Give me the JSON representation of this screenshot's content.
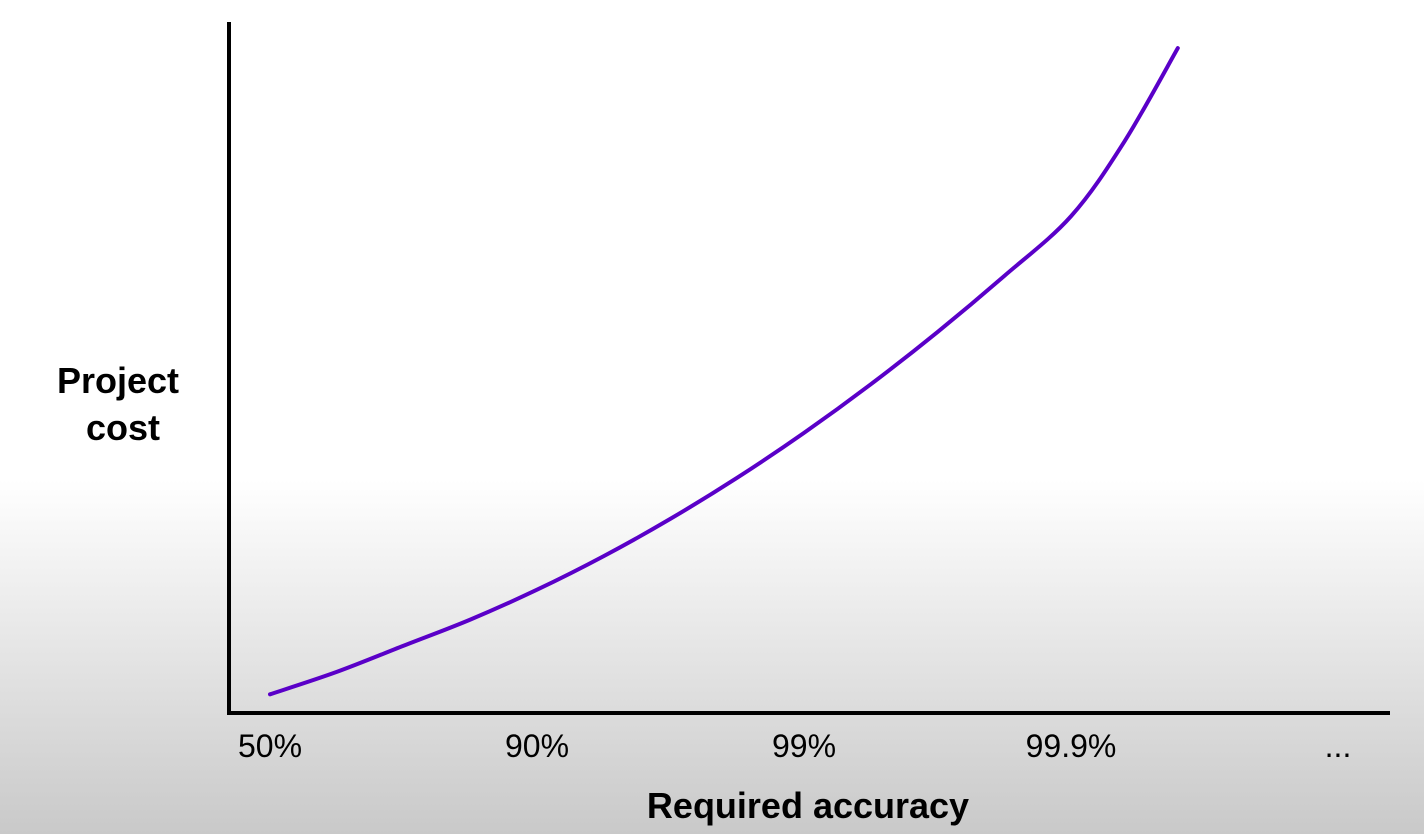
{
  "chart_data": {
    "type": "line",
    "xlabel": "Required accuracy",
    "ylabel": "Project cost",
    "x_tick_labels": [
      "50%",
      "90%",
      "99%",
      "99.9%",
      "..."
    ],
    "y_tick_labels": [],
    "grid": false,
    "legend": "none",
    "series": [
      {
        "color": "#5a00c8",
        "x": [
          0,
          0.25,
          0.5,
          0.75,
          1,
          1.25,
          1.5,
          1.75,
          2,
          2.25,
          2.5,
          2.75,
          3,
          3.2,
          3.4
        ],
        "y": [
          0.05,
          0.11,
          0.18,
          0.25,
          0.33,
          0.42,
          0.52,
          0.63,
          0.75,
          0.88,
          1.02,
          1.17,
          1.33,
          1.53,
          1.78
        ]
      }
    ],
    "xlim": [
      0,
      4
    ],
    "ylim": [
      0,
      1.85
    ]
  }
}
